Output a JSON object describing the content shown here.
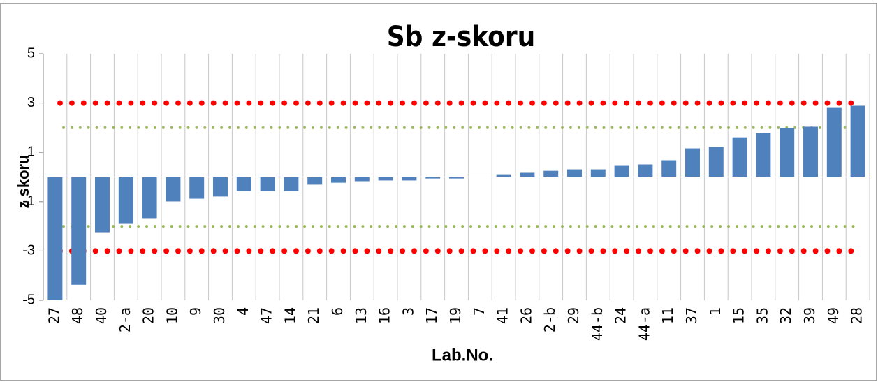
{
  "chart_data": {
    "type": "bar",
    "title": "Sb z-skoru",
    "ylabel": "z skoru",
    "xlabel": "Lab.No.",
    "categories": [
      "27",
      "48",
      "40",
      "2-a",
      "20",
      "10",
      "9",
      "30",
      "4",
      "47",
      "14",
      "21",
      "6",
      "13",
      "16",
      "3",
      "17",
      "19",
      "7",
      "41",
      "26",
      "2-b",
      "29",
      "44-b",
      "24",
      "44-a",
      "11",
      "37",
      "1",
      "15",
      "35",
      "32",
      "39",
      "49",
      "28"
    ],
    "values": [
      -5.0,
      -4.37,
      -2.24,
      -1.9,
      -1.67,
      -0.99,
      -0.88,
      -0.79,
      -0.57,
      -0.57,
      -0.57,
      -0.31,
      -0.23,
      -0.17,
      -0.14,
      -0.14,
      -0.06,
      -0.06,
      0,
      0.11,
      0.17,
      0.25,
      0.31,
      0.31,
      0.48,
      0.51,
      0.68,
      1.16,
      1.22,
      1.61,
      1.78,
      1.98,
      2.04,
      2.83,
      2.89
    ],
    "color": "#4f81bd",
    "ylim": [
      -5,
      5
    ],
    "yticks": [
      -5,
      -3,
      -1,
      1,
      3,
      5
    ],
    "reference_lines": [
      {
        "value": 3,
        "color": "#ff0000"
      },
      {
        "value": -3,
        "color": "#ff0000"
      },
      {
        "value": 2,
        "color": "#9bbb59"
      },
      {
        "value": -2,
        "color": "#9bbb59"
      }
    ],
    "grid": true
  }
}
